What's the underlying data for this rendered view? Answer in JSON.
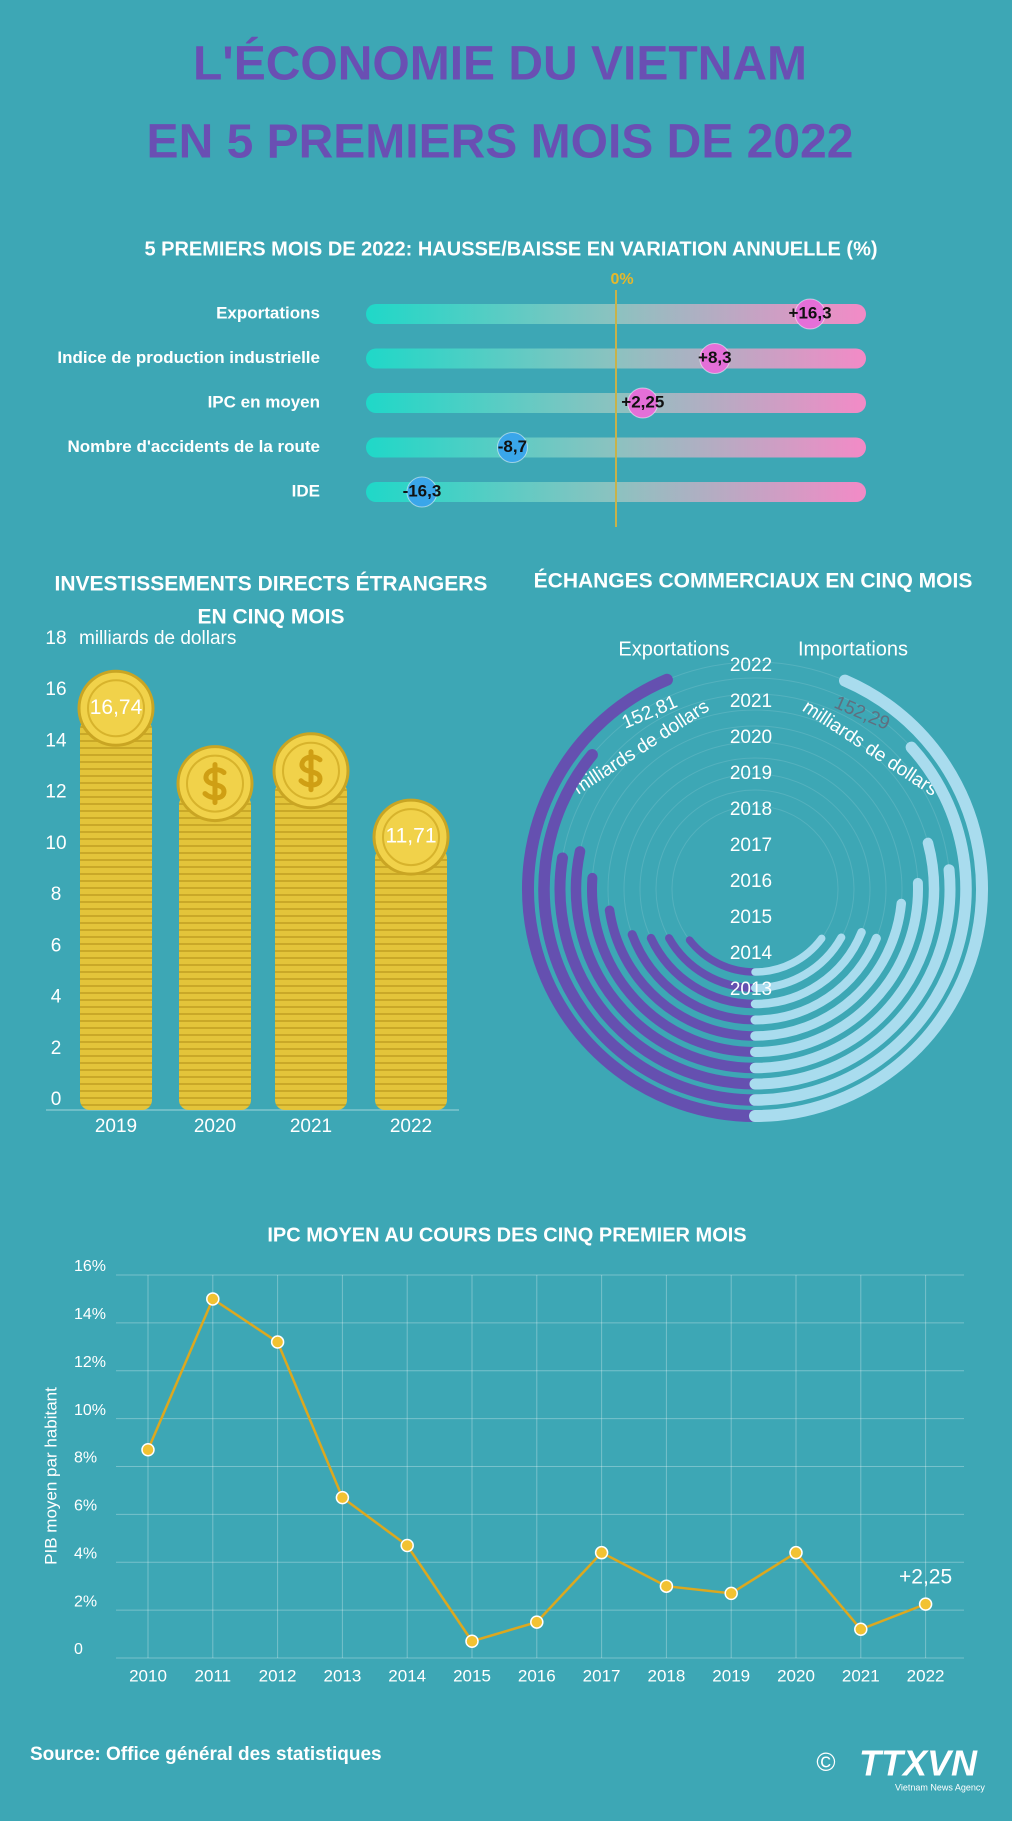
{
  "title": [
    "L'ÉCONOMIE DU VIETNAM",
    "EN 5 PREMIERS MOIS DE 2022"
  ],
  "chart_data": [
    {
      "type": "dot",
      "title": "5 PREMIERS MOIS DE 2022: HAUSSE/BAISSE EN VARIATION ANNUELLE (%)",
      "categories": [
        "Exportations",
        "Indice de production industrielle",
        "IPC en moyen",
        "Nombre d'accidents de la route",
        "IDE"
      ],
      "values": [
        16.3,
        8.3,
        2.25,
        -8.7,
        -16.3
      ],
      "value_labels": [
        "+16,3",
        "+8,3",
        "+2,25",
        "-8,7",
        "-16,3"
      ],
      "xlim": [
        -21,
        21
      ],
      "xticks": [
        {
          "value": 0,
          "label": "0%"
        }
      ],
      "colors": {
        "positive": "#e46fd8",
        "negative": "#3aa6ea"
      }
    },
    {
      "type": "bar",
      "title": [
        "INVESTISSEMENTS DIRECTS ÉTRANGERS",
        "EN CINQ MOIS"
      ],
      "unit": "milliards de dollars",
      "categories": [
        "2019",
        "2020",
        "2021",
        "2022"
      ],
      "values": [
        16.74,
        13.8,
        14.3,
        11.71
      ],
      "value_labels": [
        "16,74",
        null,
        null,
        "11,71"
      ],
      "color": "#e3c43a",
      "ylim": [
        0,
        18
      ],
      "yticks": [
        0,
        2,
        4,
        6,
        8,
        10,
        12,
        14,
        16,
        18
      ]
    },
    {
      "type": "radial",
      "title": "ÉCHANGES COMMERCIAUX EN CINQ MOIS",
      "unit": "milliards de dollars",
      "categories": [
        "2022",
        "2021",
        "2020",
        "2019",
        "2018",
        "2017",
        "2016",
        "2015",
        "2014",
        "2013"
      ],
      "valuelim": [
        0,
        175
      ],
      "series": [
        {
          "name": "Exportations",
          "color": "#6550b0",
          "side": "left",
          "values": [
            152.81,
            125.9,
            96.4,
            99.3,
            91.3,
            79.4,
            67.7,
            62.9,
            58.6,
            50.6
          ],
          "value_labels": [
            "152,81",
            null,
            null,
            null,
            null,
            null,
            null,
            null,
            null,
            null
          ]
        },
        {
          "name": "Importations",
          "color": "#a9dcee",
          "side": "right",
          "values": [
            152.29,
            128.5,
            93.0,
            102.0,
            89.6,
            82.0,
            66.0,
            66.0,
            59.0,
            52.0
          ],
          "value_labels": [
            "152,29",
            null,
            null,
            null,
            null,
            null,
            null,
            null,
            null,
            null
          ]
        }
      ]
    },
    {
      "type": "line",
      "title": "IPC MOYEN AU COURS DES CINQ PREMIER MOIS",
      "y_label": "PIB moyen par habitant",
      "categories": [
        "2010",
        "2011",
        "2012",
        "2013",
        "2014",
        "2015",
        "2016",
        "2017",
        "2018",
        "2019",
        "2020",
        "2021",
        "2022"
      ],
      "values": [
        8.7,
        15.0,
        13.2,
        6.7,
        4.7,
        0.7,
        1.5,
        4.4,
        3.0,
        2.7,
        4.4,
        1.2,
        2.25
      ],
      "value_labels": [
        null,
        null,
        null,
        null,
        null,
        null,
        null,
        null,
        null,
        null,
        null,
        null,
        "+2,25"
      ],
      "color": "#dca81f",
      "ylim": [
        0,
        16
      ],
      "yticks": [
        0,
        {
          "value": 2,
          "label": "2%"
        },
        {
          "value": 4,
          "label": "4%"
        },
        {
          "value": 6,
          "label": "6%"
        },
        {
          "value": 8,
          "label": "8%"
        },
        {
          "value": 10,
          "label": "10%"
        },
        {
          "value": 12,
          "label": "12%"
        },
        {
          "value": 14,
          "label": "14%"
        },
        {
          "value": 16,
          "label": "16%"
        }
      ],
      "grid": true
    }
  ],
  "source": "Source: Office général des statistiques",
  "logo": {
    "copyright": "©",
    "name": "TTXVN",
    "subtitle": "Vietnam News Agency"
  }
}
